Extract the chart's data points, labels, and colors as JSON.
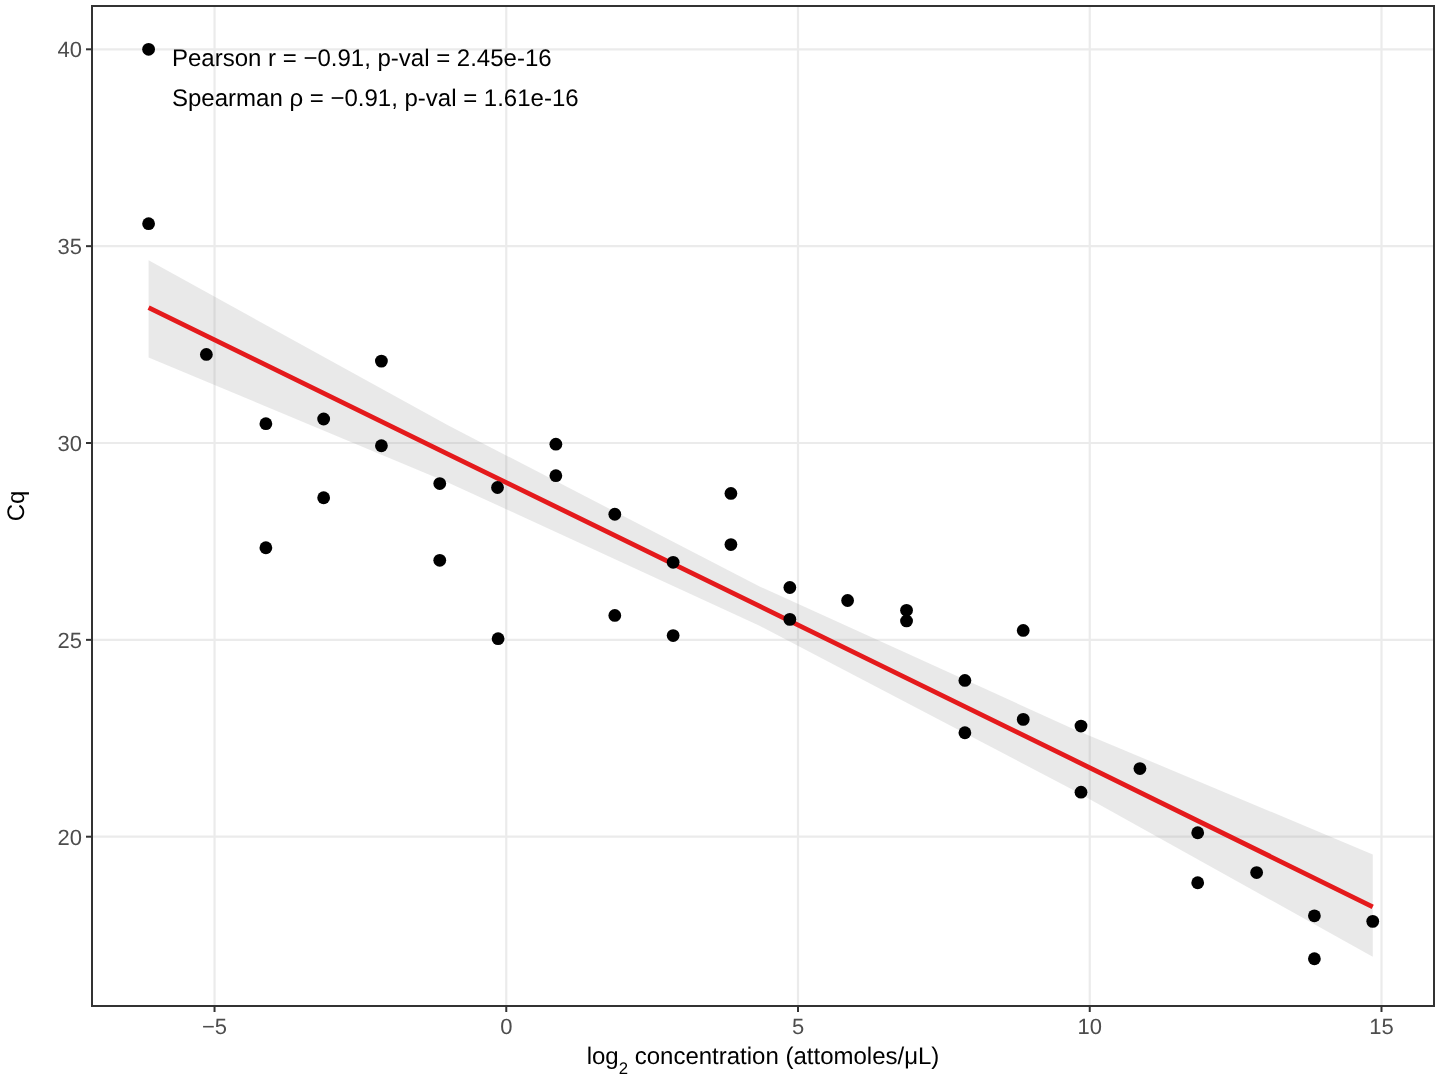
{
  "chart_data": {
    "type": "scatter",
    "xlabel": "log$_{2}$ concentration (attomoles/μL)",
    "ylabel": "Cq",
    "annotations": [
      "Pearson r = −0.91, p-val = 2.45e-16",
      "Spearman ρ = −0.91, p-val = 1.61e-16"
    ],
    "xlim": [
      -7.1,
      15.9
    ],
    "ylim": [
      15.7,
      41.1
    ],
    "xticks": [
      {
        "value": -5,
        "label": "−5"
      },
      0,
      5,
      10,
      15
    ],
    "yticks": [
      20,
      25,
      30,
      35,
      40
    ],
    "grid": true,
    "series": [
      {
        "marker": "circle",
        "color": "#000000",
        "x": [
          -6.13,
          -6.13,
          -5.14,
          -4.12,
          -4.12,
          -3.13,
          -3.13,
          -2.14,
          -2.14,
          -1.14,
          -1.14,
          -0.15,
          -0.14,
          0.85,
          0.85,
          1.86,
          1.86,
          2.86,
          2.86,
          3.85,
          3.85,
          4.86,
          4.86,
          5.85,
          6.86,
          6.86,
          7.86,
          7.86,
          8.86,
          8.86,
          9.85,
          9.85,
          10.86,
          11.85,
          11.85,
          12.86,
          13.85,
          13.85,
          14.85
        ],
        "values": [
          40.0,
          35.57,
          32.25,
          30.49,
          27.34,
          30.61,
          28.61,
          32.08,
          29.93,
          28.97,
          27.02,
          28.87,
          25.03,
          29.97,
          29.17,
          28.19,
          25.62,
          26.97,
          25.11,
          28.72,
          27.42,
          26.33,
          25.52,
          26.0,
          25.75,
          25.48,
          23.97,
          22.64,
          25.24,
          22.98,
          22.81,
          21.13,
          21.73,
          20.1,
          18.83,
          19.09,
          17.99,
          16.9,
          17.85
        ]
      },
      {
        "type": "line",
        "marker": "none",
        "color": "#e41a1c",
        "x": [
          -6.13,
          -1,
          4.35,
          9.7,
          14.85
        ],
        "values": [
          33.44,
          29.72,
          25.85,
          21.97,
          18.22
        ],
        "lower": [
          32.17,
          29.0,
          25.35,
          21.2,
          16.95
        ],
        "upper": [
          34.64,
          30.45,
          26.35,
          22.75,
          19.55
        ]
      }
    ]
  }
}
